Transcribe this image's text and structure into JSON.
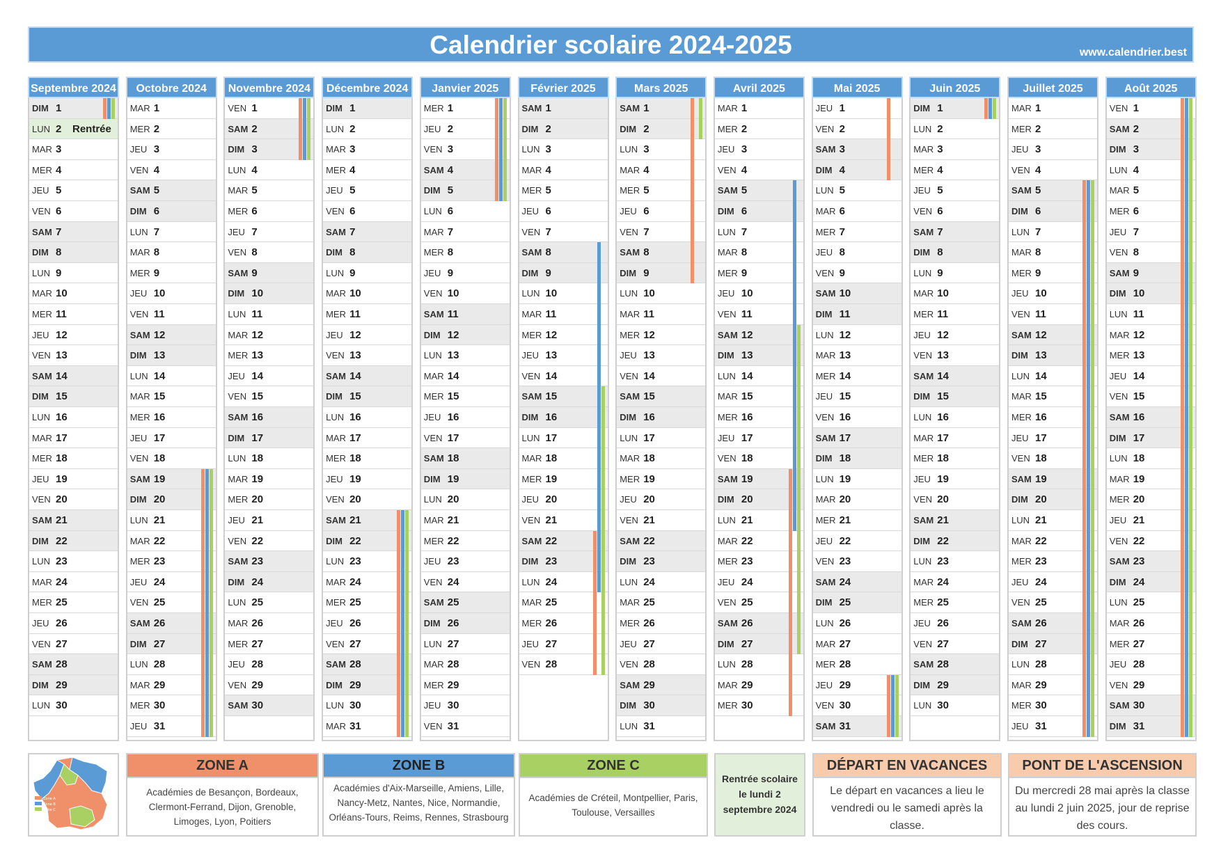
{
  "header": {
    "title": "Calendrier scolaire 2024-2025",
    "site": "www.calendrier.best"
  },
  "colors": {
    "zone_a": "#f0906a",
    "zone_b": "#5b9bd5",
    "zone_c": "#a9d063",
    "weekend": "#eaeaea",
    "rentree": "#e2efda"
  },
  "rentree_label": "Rentrée",
  "months": [
    {
      "name": "Septembre 2024",
      "start": 6,
      "days": 30,
      "rentree": 2,
      "bars": [
        {
          "zone": "a",
          "from": 1,
          "to": 1
        },
        {
          "zone": "b",
          "from": 1,
          "to": 1
        },
        {
          "zone": "c",
          "from": 1,
          "to": 1
        }
      ]
    },
    {
      "name": "Octobre 2024",
      "start": 1,
      "days": 31,
      "bars": [
        {
          "zone": "a",
          "from": 19,
          "to": 31
        },
        {
          "zone": "b",
          "from": 19,
          "to": 31
        },
        {
          "zone": "c",
          "from": 19,
          "to": 31
        }
      ]
    },
    {
      "name": "Novembre 2024",
      "start": 4,
      "days": 30,
      "bars": [
        {
          "zone": "a",
          "from": 1,
          "to": 3
        },
        {
          "zone": "b",
          "from": 1,
          "to": 3
        },
        {
          "zone": "c",
          "from": 1,
          "to": 3
        }
      ]
    },
    {
      "name": "Décembre 2024",
      "start": 6,
      "days": 31,
      "bars": [
        {
          "zone": "a",
          "from": 21,
          "to": 31
        },
        {
          "zone": "b",
          "from": 21,
          "to": 31
        },
        {
          "zone": "c",
          "from": 21,
          "to": 31
        }
      ]
    },
    {
      "name": "Janvier 2025",
      "start": 2,
      "days": 31,
      "bars": [
        {
          "zone": "a",
          "from": 1,
          "to": 5
        },
        {
          "zone": "b",
          "from": 1,
          "to": 5
        },
        {
          "zone": "c",
          "from": 1,
          "to": 5
        }
      ]
    },
    {
      "name": "Février 2025",
      "start": 5,
      "days": 28,
      "bars": [
        {
          "zone": "a",
          "from": 22,
          "to": 28
        },
        {
          "zone": "b",
          "from": 8,
          "to": 24
        },
        {
          "zone": "c",
          "from": 15,
          "to": 28
        }
      ]
    },
    {
      "name": "Mars 2025",
      "start": 5,
      "days": 31,
      "bars": [
        {
          "zone": "a",
          "from": 1,
          "to": 9
        },
        {
          "zone": "c",
          "from": 1,
          "to": 2
        }
      ]
    },
    {
      "name": "Avril 2025",
      "start": 1,
      "days": 30,
      "bars": [
        {
          "zone": "a",
          "from": 19,
          "to": 30
        },
        {
          "zone": "b",
          "from": 5,
          "to": 21
        },
        {
          "zone": "c",
          "from": 12,
          "to": 27
        }
      ]
    },
    {
      "name": "Mai 2025",
      "start": 3,
      "days": 31,
      "bars": [
        {
          "zone": "a",
          "from": 1,
          "to": 4
        },
        {
          "zone": "a",
          "from": 29,
          "to": 31
        },
        {
          "zone": "b",
          "from": 29,
          "to": 31
        },
        {
          "zone": "c",
          "from": 29,
          "to": 31
        }
      ]
    },
    {
      "name": "Juin 2025",
      "start": 6,
      "days": 30,
      "bars": [
        {
          "zone": "a",
          "from": 1,
          "to": 1
        },
        {
          "zone": "b",
          "from": 1,
          "to": 1
        },
        {
          "zone": "c",
          "from": 1,
          "to": 1
        }
      ]
    },
    {
      "name": "Juillet 2025",
      "start": 1,
      "days": 31,
      "bars": [
        {
          "zone": "a",
          "from": 5,
          "to": 31
        },
        {
          "zone": "b",
          "from": 5,
          "to": 31
        },
        {
          "zone": "c",
          "from": 5,
          "to": 31
        }
      ]
    },
    {
      "name": "Août 2025",
      "start": 4,
      "days": 31,
      "bars": [
        {
          "zone": "a",
          "from": 1,
          "to": 31
        },
        {
          "zone": "b",
          "from": 1,
          "to": 31
        },
        {
          "zone": "c",
          "from": 1,
          "to": 31
        }
      ]
    }
  ],
  "day_abbr": [
    "LUN",
    "MAR",
    "MER",
    "JEU",
    "VEN",
    "SAM",
    "DIM"
  ],
  "legend": {
    "zone_a": {
      "title": "ZONE A",
      "text": "Académies de Besançon, Bordeaux, Clermont-Ferrand, Dijon, Grenoble, Limoges, Lyon, Poitiers"
    },
    "zone_b": {
      "title": "ZONE B",
      "text": "Académies d'Aix-Marseille, Amiens, Lille, Nancy-Metz, Nantes, Nice, Normandie, Orléans-Tours, Reims, Rennes, Strasbourg"
    },
    "zone_c": {
      "title": "ZONE C",
      "text": "Académies de Créteil, Montpellier, Paris, Toulouse, Versailles"
    },
    "rentree": {
      "text": "Rentrée scolaire le lundi 2 septembre 2024"
    },
    "depart": {
      "title": "DÉPART EN VACANCES",
      "text": "Le départ en vacances a lieu le vendredi ou le samedi après la classe."
    },
    "pont": {
      "title": "PONT DE L'ASCENSION",
      "text": "Du mercredi 28 mai après la classe au lundi 2 juin 2025, jour de reprise des cours."
    },
    "map_labels": {
      "a": "Zone A",
      "b": "Zone B",
      "c": "Zone C"
    }
  }
}
